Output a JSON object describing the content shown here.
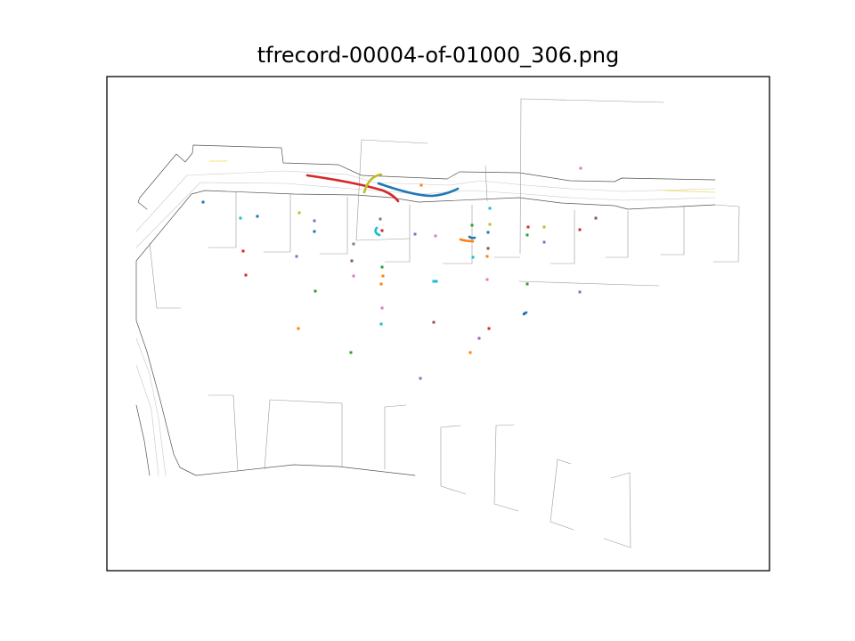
{
  "figure": {
    "title": "tfrecord-00004-of-01000_306.png"
  },
  "chart_data": {
    "type": "map",
    "title": "tfrecord-00004-of-01000_306.png",
    "xlabel": "",
    "ylabel": "",
    "axis_ticks": "hidden",
    "legend": "none",
    "grid": false,
    "colors": {
      "road_edge": "#555555",
      "lane": "#c8c8c8",
      "boundary": "#9a9a9a",
      "yellow_line": "#f0e040"
    },
    "palette": [
      "#1f77b4",
      "#ff7f0e",
      "#2ca02c",
      "#d62728",
      "#9467bd",
      "#8c564b",
      "#e377c2",
      "#7f7f7f",
      "#bcbd22",
      "#17becf"
    ]
  }
}
